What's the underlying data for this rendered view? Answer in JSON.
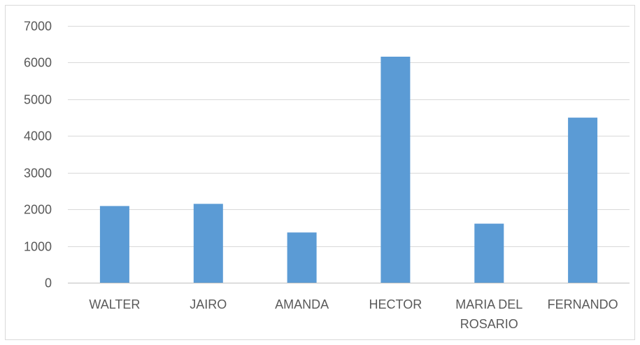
{
  "chart_data": {
    "type": "bar",
    "categories": [
      "WALTER",
      "JAIRO",
      "AMANDA",
      "HECTOR",
      "MARIA DEL ROSARIO",
      "FERNANDO"
    ],
    "category_lines": [
      [
        "WALTER"
      ],
      [
        "JAIRO"
      ],
      [
        "AMANDA"
      ],
      [
        "HECTOR"
      ],
      [
        "MARIA DEL",
        "ROSARIO"
      ],
      [
        "FERNANDO"
      ]
    ],
    "values": [
      2090,
      2150,
      1370,
      6160,
      1610,
      4500
    ],
    "title": "",
    "xlabel": "",
    "ylabel": "",
    "ylim": [
      0,
      7000
    ],
    "yticks": [
      0,
      1000,
      2000,
      3000,
      4000,
      5000,
      6000,
      7000
    ],
    "grid": true,
    "legend": "none",
    "colors": {
      "bar": "#5B9BD5",
      "grid": "#D9D9D9",
      "axis": "#BFBFBF",
      "text": "#595959",
      "border": "#D9D9D9"
    }
  }
}
